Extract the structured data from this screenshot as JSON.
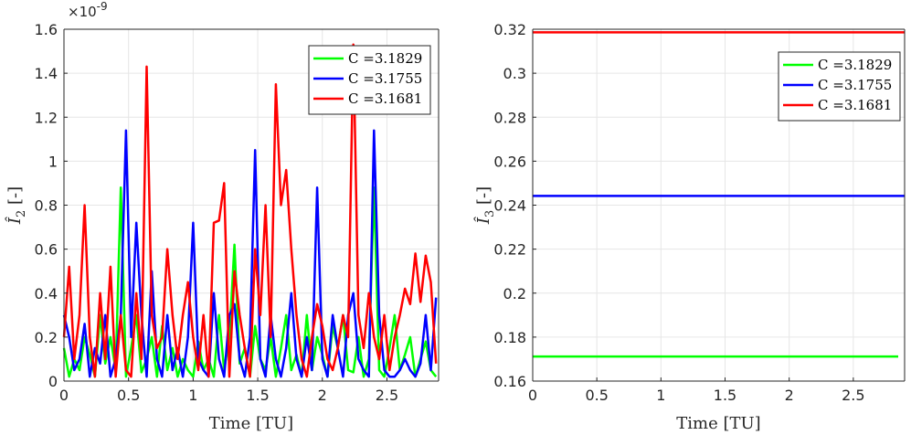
{
  "chart_data": [
    {
      "type": "line",
      "xlabel": "Time [TU]",
      "ylabel": "Î₂ [-]",
      "ylabel_main": "Î",
      "ylabel_sub": "2",
      "ylabel_unit": "[-]",
      "exponent_label": "×10",
      "exponent_power": "-9",
      "xlim": [
        0,
        2.9
      ],
      "ylim": [
        0,
        1.6
      ],
      "xticks": [
        "0",
        "0.5",
        "1",
        "1.5",
        "2",
        "2.5"
      ],
      "yticks": [
        "0",
        "0.2",
        "0.4",
        "0.6",
        "0.8",
        "1",
        "1.2",
        "1.4",
        "1.6"
      ],
      "grid": true,
      "legend_position": "top-right",
      "series": [
        {
          "name": "C =3.1829",
          "color": "#00ff00",
          "x": [
            0,
            0.04,
            0.08,
            0.12,
            0.16,
            0.2,
            0.24,
            0.28,
            0.32,
            0.36,
            0.4,
            0.44,
            0.48,
            0.52,
            0.56,
            0.6,
            0.64,
            0.68,
            0.72,
            0.76,
            0.8,
            0.84,
            0.88,
            0.92,
            0.96,
            1.0,
            1.04,
            1.08,
            1.12,
            1.16,
            1.2,
            1.24,
            1.28,
            1.32,
            1.36,
            1.4,
            1.44,
            1.48,
            1.52,
            1.56,
            1.6,
            1.64,
            1.68,
            1.72,
            1.76,
            1.8,
            1.84,
            1.88,
            1.92,
            1.96,
            2.0,
            2.04,
            2.08,
            2.12,
            2.16,
            2.2,
            2.24,
            2.28,
            2.32,
            2.36,
            2.4,
            2.44,
            2.48,
            2.52,
            2.56,
            2.6,
            2.64,
            2.68,
            2.72,
            2.76,
            2.8,
            2.84,
            2.88
          ],
          "values": [
            0.15,
            0.02,
            0.1,
            0.05,
            0.2,
            0.12,
            0.02,
            0.3,
            0.08,
            0.2,
            0.05,
            0.88,
            0.02,
            0.15,
            0.3,
            0.04,
            0.1,
            0.2,
            0.02,
            0.25,
            0.05,
            0.15,
            0.02,
            0.1,
            0.05,
            0.02,
            0.18,
            0.05,
            0.1,
            0.02,
            0.3,
            0.05,
            0.2,
            0.62,
            0.08,
            0.15,
            0.02,
            0.25,
            0.1,
            0.05,
            0.2,
            0.02,
            0.15,
            0.3,
            0.05,
            0.12,
            0.02,
            0.3,
            0.05,
            0.2,
            0.12,
            0.02,
            0.25,
            0.15,
            0.3,
            0.05,
            0.04,
            0.2,
            0.02,
            0.1,
            0.88,
            0.05,
            0.02,
            0.15,
            0.3,
            0.05,
            0.12,
            0.2,
            0.02,
            0.1,
            0.18,
            0.05,
            0.02
          ]
        },
        {
          "name": "C =3.1755",
          "color": "#0000ff",
          "x": [
            0,
            0.04,
            0.08,
            0.12,
            0.16,
            0.2,
            0.24,
            0.28,
            0.32,
            0.36,
            0.4,
            0.44,
            0.48,
            0.52,
            0.56,
            0.6,
            0.64,
            0.68,
            0.72,
            0.76,
            0.8,
            0.84,
            0.88,
            0.92,
            0.96,
            1.0,
            1.04,
            1.08,
            1.12,
            1.16,
            1.2,
            1.24,
            1.28,
            1.32,
            1.36,
            1.4,
            1.44,
            1.48,
            1.52,
            1.56,
            1.6,
            1.64,
            1.68,
            1.72,
            1.76,
            1.8,
            1.84,
            1.88,
            1.92,
            1.96,
            2.0,
            2.04,
            2.08,
            2.12,
            2.16,
            2.2,
            2.24,
            2.28,
            2.32,
            2.36,
            2.4,
            2.44,
            2.48,
            2.52,
            2.56,
            2.6,
            2.64,
            2.68,
            2.72,
            2.76,
            2.8,
            2.84,
            2.88
          ],
          "values": [
            0.3,
            0.2,
            0.05,
            0.1,
            0.26,
            0.02,
            0.15,
            0.08,
            0.3,
            0.02,
            0.1,
            0.3,
            1.14,
            0.2,
            0.72,
            0.3,
            0.02,
            0.5,
            0.1,
            0.02,
            0.3,
            0.05,
            0.15,
            0.02,
            0.2,
            0.72,
            0.1,
            0.05,
            0.02,
            0.4,
            0.1,
            0.02,
            0.3,
            0.35,
            0.1,
            0.02,
            0.2,
            1.05,
            0.1,
            0.02,
            0.3,
            0.1,
            0.02,
            0.15,
            0.4,
            0.1,
            0.02,
            0.2,
            0.05,
            0.88,
            0.1,
            0.02,
            0.3,
            0.15,
            0.02,
            0.3,
            0.4,
            0.1,
            0.05,
            0.02,
            1.14,
            0.3,
            0.05,
            0.02,
            0.02,
            0.05,
            0.1,
            0.05,
            0.02,
            0.08,
            0.3,
            0.05,
            0.38
          ]
        },
        {
          "name": "C =3.1681",
          "color": "#ff0000",
          "x": [
            0,
            0.04,
            0.08,
            0.12,
            0.16,
            0.2,
            0.24,
            0.28,
            0.32,
            0.36,
            0.4,
            0.44,
            0.48,
            0.52,
            0.56,
            0.6,
            0.64,
            0.68,
            0.72,
            0.76,
            0.8,
            0.84,
            0.88,
            0.92,
            0.96,
            1.0,
            1.04,
            1.08,
            1.12,
            1.16,
            1.2,
            1.24,
            1.28,
            1.32,
            1.36,
            1.4,
            1.44,
            1.48,
            1.52,
            1.56,
            1.6,
            1.64,
            1.68,
            1.72,
            1.76,
            1.8,
            1.84,
            1.88,
            1.92,
            1.96,
            2.0,
            2.04,
            2.08,
            2.12,
            2.16,
            2.2,
            2.24,
            2.28,
            2.32,
            2.36,
            2.4,
            2.44,
            2.48,
            2.52,
            2.56,
            2.6,
            2.64,
            2.68,
            2.72,
            2.76,
            2.8,
            2.84,
            2.88
          ],
          "values": [
            0.2,
            0.52,
            0.1,
            0.3,
            0.8,
            0.2,
            0.02,
            0.4,
            0.1,
            0.52,
            0.02,
            0.3,
            0.05,
            0.02,
            0.4,
            0.1,
            1.43,
            0.3,
            0.15,
            0.2,
            0.6,
            0.3,
            0.1,
            0.3,
            0.45,
            0.2,
            0.05,
            0.3,
            0.02,
            0.72,
            0.73,
            0.9,
            0.02,
            0.5,
            0.3,
            0.15,
            0.02,
            0.6,
            0.3,
            0.8,
            0.2,
            1.35,
            0.8,
            0.96,
            0.6,
            0.3,
            0.1,
            0.02,
            0.2,
            0.35,
            0.25,
            0.1,
            0.05,
            0.15,
            0.3,
            0.2,
            1.53,
            0.3,
            0.15,
            0.4,
            0.2,
            0.1,
            0.3,
            0.05,
            0.2,
            0.3,
            0.42,
            0.35,
            0.58,
            0.36,
            0.57,
            0.45,
            0.08
          ]
        }
      ]
    },
    {
      "type": "line",
      "xlabel": "Time [TU]",
      "ylabel": "Î₃ [-]",
      "ylabel_main": "Î",
      "ylabel_sub": "3",
      "ylabel_unit": "[-]",
      "xlim": [
        0,
        2.9
      ],
      "ylim": [
        0.16,
        0.32
      ],
      "xticks": [
        "0",
        "0.5",
        "1",
        "1.5",
        "2",
        "2.5"
      ],
      "yticks": [
        "0.16",
        "0.18",
        "0.2",
        "0.22",
        "0.24",
        "0.26",
        "0.28",
        "0.3",
        "0.32"
      ],
      "grid": true,
      "legend_position": "top-right",
      "series": [
        {
          "name": "C =3.1829",
          "color": "#00ff00",
          "x": [
            0,
            2.85
          ],
          "values": [
            0.1712,
            0.1712
          ]
        },
        {
          "name": "C =3.1755",
          "color": "#0000ff",
          "x": [
            0,
            2.9
          ],
          "values": [
            0.2442,
            0.2442
          ]
        },
        {
          "name": "C =3.1681",
          "color": "#ff0000",
          "x": [
            0,
            2.9
          ],
          "values": [
            0.3186,
            0.3186
          ]
        }
      ]
    }
  ]
}
